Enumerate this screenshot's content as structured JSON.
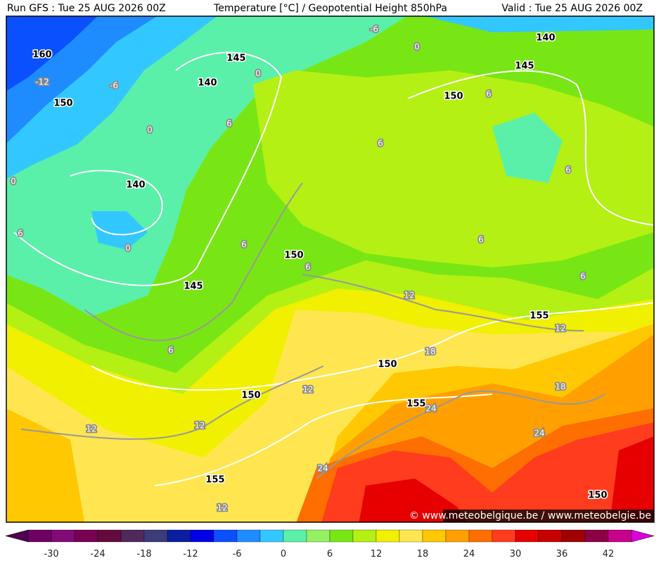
{
  "header": {
    "run": "Run GFS : Tue 25 AUG 2026 00Z",
    "title": "Temperature [°C] / Geopotential Height 850hPa",
    "valid": "Valid : Tue 25 AUG 2026 00Z"
  },
  "height_labels": [
    "160",
    "150",
    "145",
    "140",
    "140",
    "150",
    "145",
    "140",
    "150",
    "145",
    "155",
    "150",
    "150",
    "155",
    "155",
    "150"
  ],
  "temperature_labels": [
    "-6",
    "0",
    "-12",
    "-6",
    "0",
    "0",
    "6",
    "6",
    "6",
    "0",
    "6",
    "6",
    "0",
    "6",
    "6",
    "6",
    "6",
    "12",
    "12",
    "6",
    "18",
    "12",
    "18",
    "24",
    "12",
    "12",
    "24",
    "24",
    "12"
  ],
  "colorbar": {
    "labels": [
      "-30",
      "-24",
      "-18",
      "-12",
      "-6",
      "0",
      "6",
      "12",
      "18",
      "24",
      "30",
      "36",
      "42"
    ]
  },
  "watermark": "© www.meteobelgique.be / www.meteobelgie.be"
}
